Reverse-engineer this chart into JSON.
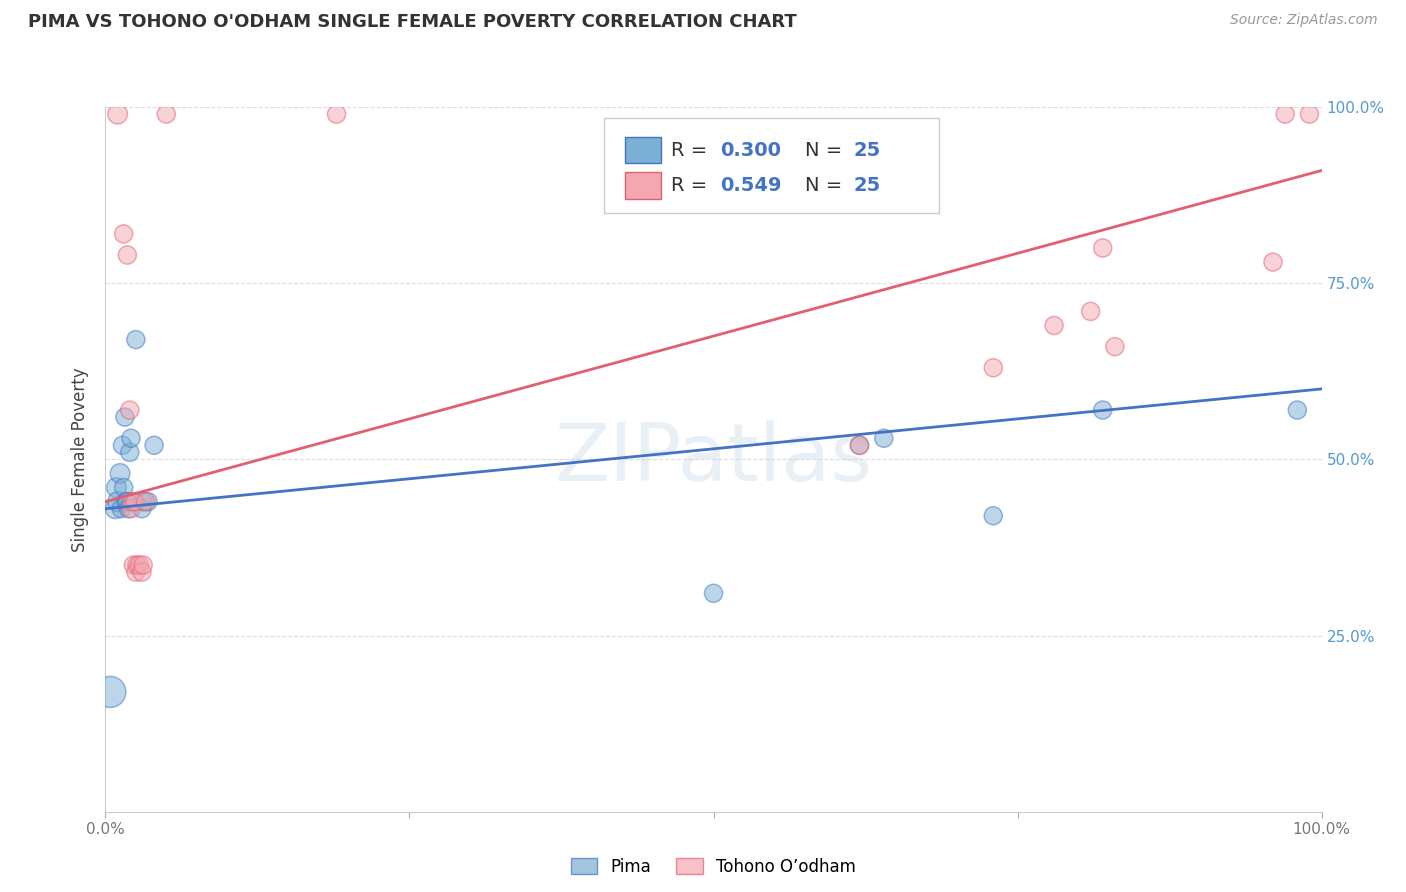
{
  "title": "PIMA VS TOHONO O'ODHAM SINGLE FEMALE POVERTY CORRELATION CHART",
  "source": "Source: ZipAtlas.com",
  "ylabel": "Single Female Poverty",
  "xlim": [
    0,
    1
  ],
  "ylim": [
    0,
    1
  ],
  "blue_r": "0.300",
  "blue_n": "25",
  "pink_r": "0.549",
  "pink_n": "25",
  "blue_color": "#7BAFD4",
  "pink_color": "#F4A7B0",
  "blue_edge": "#4472C4",
  "pink_edge": "#E06070",
  "blue_line_color": "#4472C4",
  "pink_line_color": "#E06070",
  "blue_scatter": [
    [
      0.004,
      0.17
    ],
    [
      0.008,
      0.43
    ],
    [
      0.009,
      0.46
    ],
    [
      0.01,
      0.44
    ],
    [
      0.012,
      0.48
    ],
    [
      0.013,
      0.43
    ],
    [
      0.014,
      0.52
    ],
    [
      0.015,
      0.46
    ],
    [
      0.016,
      0.56
    ],
    [
      0.017,
      0.44
    ],
    [
      0.018,
      0.44
    ],
    [
      0.019,
      0.43
    ],
    [
      0.02,
      0.51
    ],
    [
      0.021,
      0.53
    ],
    [
      0.025,
      0.67
    ],
    [
      0.03,
      0.43
    ],
    [
      0.031,
      0.44
    ],
    [
      0.035,
      0.44
    ],
    [
      0.04,
      0.52
    ],
    [
      0.5,
      0.31
    ],
    [
      0.62,
      0.52
    ],
    [
      0.64,
      0.53
    ],
    [
      0.73,
      0.42
    ],
    [
      0.82,
      0.57
    ],
    [
      0.98,
      0.57
    ]
  ],
  "pink_scatter": [
    [
      0.01,
      0.99
    ],
    [
      0.015,
      0.82
    ],
    [
      0.018,
      0.79
    ],
    [
      0.02,
      0.57
    ],
    [
      0.021,
      0.43
    ],
    [
      0.022,
      0.44
    ],
    [
      0.023,
      0.35
    ],
    [
      0.024,
      0.44
    ],
    [
      0.025,
      0.34
    ],
    [
      0.026,
      0.35
    ],
    [
      0.028,
      0.35
    ],
    [
      0.03,
      0.34
    ],
    [
      0.031,
      0.35
    ],
    [
      0.033,
      0.44
    ],
    [
      0.05,
      0.99
    ],
    [
      0.19,
      0.99
    ],
    [
      0.62,
      0.52
    ],
    [
      0.73,
      0.63
    ],
    [
      0.78,
      0.69
    ],
    [
      0.81,
      0.71
    ],
    [
      0.82,
      0.8
    ],
    [
      0.83,
      0.66
    ],
    [
      0.96,
      0.78
    ],
    [
      0.97,
      0.99
    ],
    [
      0.99,
      0.99
    ]
  ],
  "blue_line_x": [
    0.0,
    1.0
  ],
  "blue_line_y": [
    0.43,
    0.6
  ],
  "pink_line_x": [
    0.0,
    1.0
  ],
  "pink_line_y": [
    0.44,
    0.91
  ],
  "background_color": "#FFFFFF",
  "grid_color": "#DDDDDD",
  "watermark_text": "ZIPatlas",
  "legend_blue_label": "Pima",
  "legend_pink_label": "Tohono O’odham"
}
